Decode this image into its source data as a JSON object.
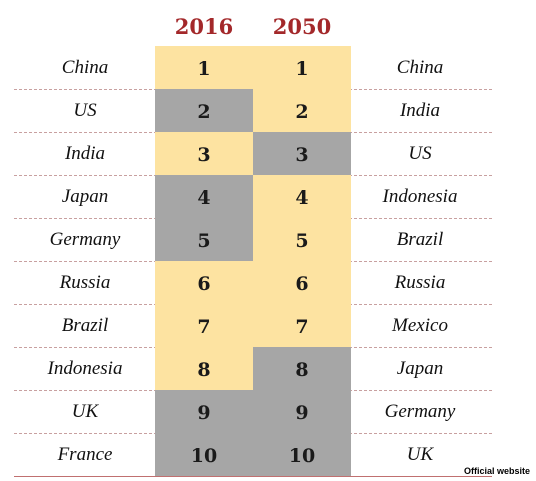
{
  "headers": {
    "year_left": "2016",
    "year_right": "2050"
  },
  "rows": [
    {
      "left": "China",
      "rank": "1",
      "right": "China",
      "c1": "gold",
      "c2": "gold"
    },
    {
      "left": "US",
      "rank": "2",
      "right": "India",
      "c1": "gray",
      "c2": "gold"
    },
    {
      "left": "India",
      "rank": "3",
      "right": "US",
      "c1": "gold",
      "c2": "gray"
    },
    {
      "left": "Japan",
      "rank": "4",
      "right": "Indonesia",
      "c1": "gray",
      "c2": "gold"
    },
    {
      "left": "Germany",
      "rank": "5",
      "right": "Brazil",
      "c1": "gray",
      "c2": "gold"
    },
    {
      "left": "Russia",
      "rank": "6",
      "right": "Russia",
      "c1": "gold",
      "c2": "gold"
    },
    {
      "left": "Brazil",
      "rank": "7",
      "right": "Mexico",
      "c1": "gold",
      "c2": "gold"
    },
    {
      "left": "Indonesia",
      "rank": "8",
      "right": "Japan",
      "c1": "gold",
      "c2": "gray"
    },
    {
      "left": "UK",
      "rank": "9",
      "right": "Germany",
      "c1": "gray",
      "c2": "gray"
    },
    {
      "left": "France",
      "rank": "10",
      "right": "UK",
      "c1": "gray",
      "c2": "gray"
    }
  ],
  "colors": {
    "gold": "#fde3a1",
    "gray": "#a6a6a6",
    "header": "#a3282a"
  },
  "credit": "Official website"
}
